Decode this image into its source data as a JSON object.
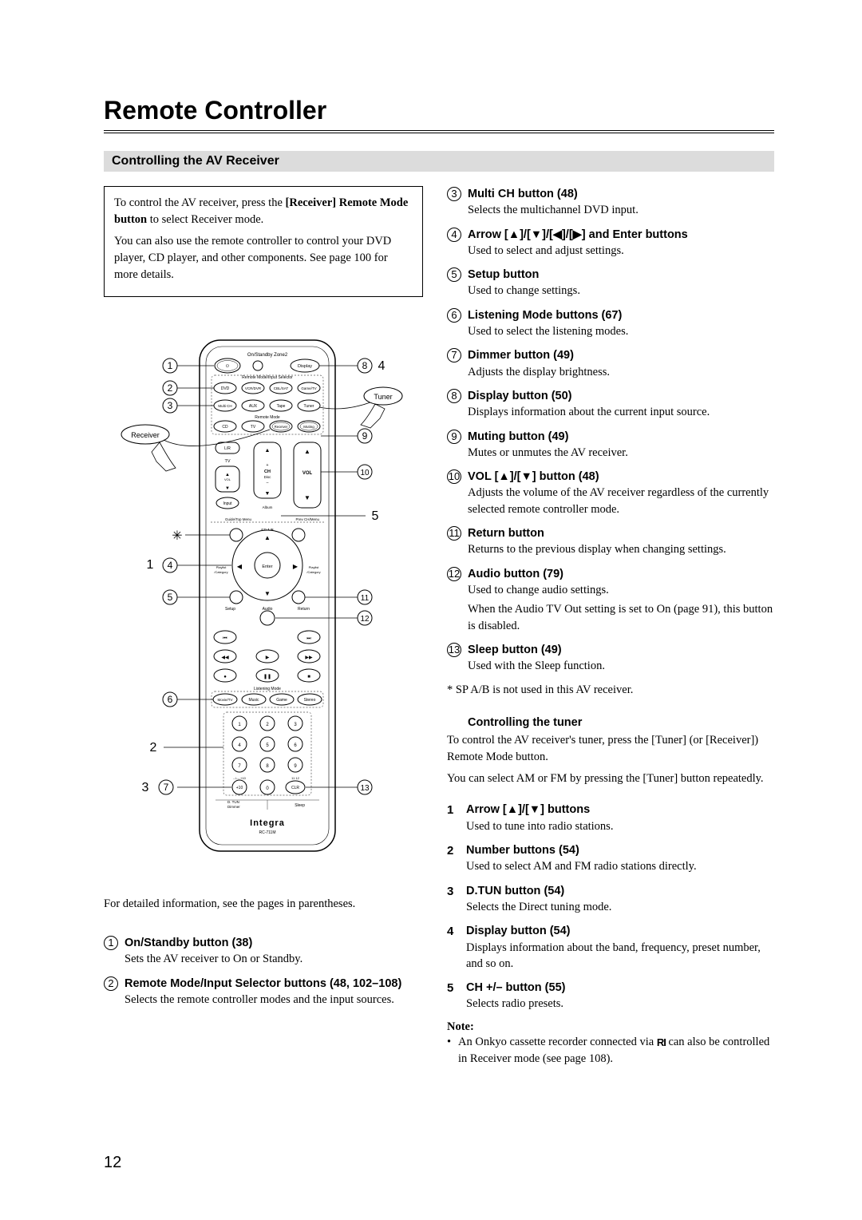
{
  "page_number": "12",
  "title": "Remote Controller",
  "section": "Controlling the AV Receiver",
  "intro": {
    "p1_a": "To control the AV receiver, press the ",
    "p1_b": "[Receiver] Remote Mode button",
    "p1_c": " to select Receiver mode.",
    "p2": "You can also use the remote controller to control your DVD player, CD player, and other components. See page 100 for more details."
  },
  "caption": "For detailed information, see the pages in parentheses.",
  "left_items": [
    {
      "mark": "1",
      "style": "circ",
      "title": "On/Standby button (38)",
      "desc": "Sets the AV receiver to On or Standby."
    },
    {
      "mark": "2",
      "style": "circ",
      "title": "Remote Mode/Input Selector buttons (48, 102–108)",
      "desc": "Selects the remote controller modes and the input sources."
    }
  ],
  "right_items": [
    {
      "mark": "3",
      "style": "circ",
      "title": "Multi CH button (48)",
      "desc": "Selects the multichannel DVD input."
    },
    {
      "mark": "4",
      "style": "circ",
      "title": "Arrow [▲]/[▼]/[◀]/[▶] and Enter buttons",
      "desc": "Used to select and adjust settings."
    },
    {
      "mark": "5",
      "style": "circ",
      "title": "Setup button",
      "desc": "Used to change settings."
    },
    {
      "mark": "6",
      "style": "circ",
      "title": "Listening Mode buttons (67)",
      "desc": "Used to select the listening modes."
    },
    {
      "mark": "7",
      "style": "circ",
      "title": "Dimmer button (49)",
      "desc": "Adjusts the display brightness."
    },
    {
      "mark": "8",
      "style": "circ",
      "title": "Display button (50)",
      "desc": "Displays information about the current input source."
    },
    {
      "mark": "9",
      "style": "circ",
      "title": "Muting button (49)",
      "desc": "Mutes or unmutes the AV receiver."
    },
    {
      "mark": "10",
      "style": "circ",
      "title": "VOL [▲]/[▼] button (48)",
      "desc": "Adjusts the volume of the AV receiver regardless of the currently selected remote controller mode."
    },
    {
      "mark": "11",
      "style": "circ",
      "title": "Return button",
      "desc": "Returns to the previous display when changing settings."
    },
    {
      "mark": "12",
      "style": "circ",
      "title": "Audio button (79)",
      "desc": "Used to change audio settings.",
      "desc2": "When the Audio TV Out setting is set to On (page 91), this button is disabled."
    },
    {
      "mark": "13",
      "style": "circ",
      "title": "Sleep button (49)",
      "desc": "Used with the Sleep function."
    }
  ],
  "footnote": "* SP A/B is not used in this AV receiver.",
  "tuner_head": "Controlling the tuner",
  "tuner_p1": "To control the AV receiver's tuner, press the [Tuner] (or [Receiver]) Remote Mode button.",
  "tuner_p2": "You can select AM or FM by pressing the [Tuner] button repeatedly.",
  "tuner_items": [
    {
      "mark": "1",
      "style": "plain",
      "title": "Arrow [▲]/[▼] buttons",
      "desc": "Used to tune into radio stations."
    },
    {
      "mark": "2",
      "style": "plain",
      "title": "Number buttons (54)",
      "desc": "Used to select AM and FM radio stations directly."
    },
    {
      "mark": "3",
      "style": "plain",
      "title": "D.TUN button (54)",
      "desc": "Selects the Direct tuning mode."
    },
    {
      "mark": "4",
      "style": "plain",
      "title": "Display button (54)",
      "desc": "Displays information about the band, frequency, preset number, and so on."
    },
    {
      "mark": "5",
      "style": "plain",
      "title": "CH +/– button (55)",
      "desc": "Selects radio presets."
    }
  ],
  "note_head": "Note:",
  "note_body_a": "An Onkyo cassette recorder connected via ",
  "note_body_b": " can also be controlled in Receiver mode (see page 108).",
  "remote": {
    "brand": "Integra",
    "model": "RC-711M",
    "callouts_left_circled": [
      "1",
      "2",
      "3",
      "4",
      "5",
      "6",
      "7"
    ],
    "callouts_left_plain": [
      "1",
      "2",
      "3"
    ],
    "callouts_left_star": "✳",
    "callouts_right_circled": [
      "8",
      "9",
      "10",
      "11",
      "12",
      "13"
    ],
    "callouts_right_plain": [
      "4",
      "5"
    ],
    "labels": {
      "top": "On/Standby    Zone2",
      "row_mode": "Remote Mode/Input Selector",
      "row_mode2": "Remote Mode",
      "display": "Display",
      "dvd": "DVD",
      "vcrdvr": "VCR/DVR",
      "cblsat": "CBL/SAT",
      "gametv": "Game/TV",
      "multich": "Multi CH",
      "aux": "AUX",
      "tape": "Tape",
      "tuner": "Tuner",
      "cd": "CD",
      "tv": "TV",
      "receiver": "Receiver",
      "muting": "Muting",
      "lr": "L/R",
      "ch": "CH",
      "disc": "Disc",
      "tv2": "TV",
      "vol": "VOL",
      "input": "Input",
      "album": "Album",
      "guide": "Guide/Top Menu",
      "prevch": "Prev CH/Menu",
      "spab": "SP A/B",
      "playlist": "Playlist\n/Category",
      "enter": "Enter",
      "setup": "Setup",
      "audio": "Audio",
      "return": "Return",
      "listening": "Listening Mode",
      "movie": "Movie/TV",
      "music": "Music",
      "game": "Game",
      "stereo": "Stereo",
      "p10": "+10",
      "clr": "CLR",
      "dtun": "D. TUN\nDimmer",
      "sleep": "Sleep"
    },
    "hand_receiver": "Receiver",
    "hand_tuner": "Tuner"
  }
}
